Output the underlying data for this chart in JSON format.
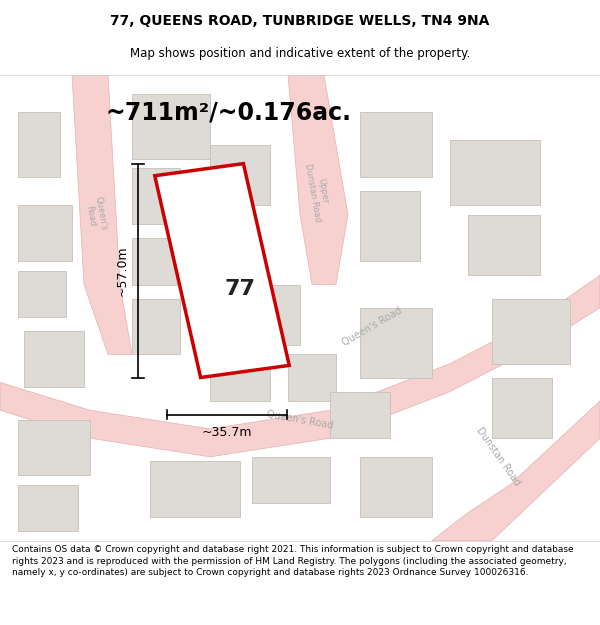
{
  "title_line1": "77, QUEENS ROAD, TUNBRIDGE WELLS, TN4 9NA",
  "title_line2": "Map shows position and indicative extent of the property.",
  "area_label": "~711m²/~0.176ac.",
  "width_label": "~35.7m",
  "height_label": "~57.0m",
  "property_number": "77",
  "footer_text": "Contains OS data © Crown copyright and database right 2021. This information is subject to Crown copyright and database rights 2023 and is reproduced with the permission of HM Land Registry. The polygons (including the associated geometry, namely x, y co-ordinates) are subject to Crown copyright and database rights 2023 Ordnance Survey 100026316.",
  "map_bg": "#f0ece8",
  "road_color": "#f7d0d0",
  "road_stroke": "#e8b0b0",
  "building_fill": "#dedad5",
  "building_stroke": "#c8c0b8",
  "property_stroke": "#cc0000",
  "property_fill": "#ffffff",
  "title_bg": "#ffffff",
  "footer_bg": "#ffffff",
  "dim_color": "#000000",
  "text_color": "#000000",
  "road_label_color": "#aaaaaa"
}
